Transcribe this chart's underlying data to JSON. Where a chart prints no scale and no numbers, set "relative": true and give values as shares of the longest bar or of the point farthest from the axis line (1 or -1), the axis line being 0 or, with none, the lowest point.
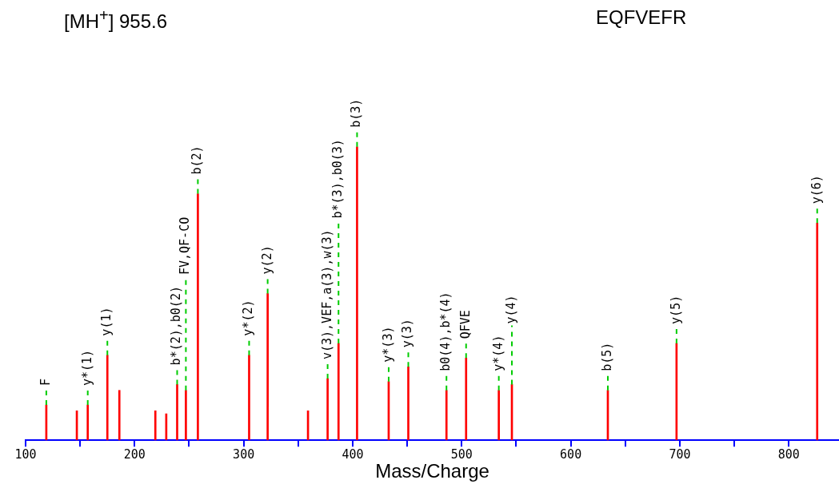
{
  "chart_data": {
    "type": "bar",
    "title": "[MH$^{+}$] 955.6",
    "subtitle": "EQFVEFR",
    "xlabel": "Mass/Charge",
    "relative": true,
    "color": "#ff0000",
    "x": [
      119,
      147,
      157,
      175,
      186,
      219,
      229,
      239,
      247,
      258,
      305,
      322,
      359,
      377,
      387,
      404,
      433,
      451,
      486,
      504,
      534,
      546,
      634,
      697,
      826
    ],
    "values": [
      0.12,
      0.1,
      0.12,
      0.29,
      0.17,
      0.1,
      0.09,
      0.19,
      0.17,
      0.84,
      0.29,
      0.5,
      0.1,
      0.21,
      0.33,
      1,
      0.2,
      0.25,
      0.17,
      0.28,
      0.17,
      0.19,
      0.17,
      0.33,
      0.74
    ],
    "xlim": [
      100,
      846
    ],
    "xticks": [
      100,
      {
        "value": 150,
        "label": null
      },
      200,
      {
        "value": 250,
        "label": null
      },
      300,
      {
        "value": 350,
        "label": null
      },
      400,
      {
        "value": 450,
        "label": null
      },
      500,
      {
        "value": 550,
        "label": null
      },
      600,
      {
        "value": 650,
        "label": null
      },
      700,
      {
        "value": 750,
        "label": null
      },
      800
    ],
    "annotations": [
      {
        "text": "F",
        "x": 119,
        "y": 0.12
      },
      {
        "text": "y*(1)",
        "x": 157,
        "y": 0.12
      },
      {
        "text": "y(1)",
        "x": 175,
        "y": 0.29
      },
      {
        "text": "b*(2),b0(2)",
        "x": 239,
        "y": 0.19
      },
      {
        "text": "FV,QF-CO",
        "x": 247,
        "y": 0.17
      },
      {
        "text": "b(2)",
        "x": 258,
        "y": 0.84
      },
      {
        "text": "y*(2)",
        "x": 305,
        "y": 0.29
      },
      {
        "text": "y(2)",
        "x": 322,
        "y": 0.5
      },
      {
        "text": "v(3),VEF,a(3),w(3)",
        "x": 377,
        "y": 0.21
      },
      {
        "text": "b*(3),b0(3)",
        "x": 387,
        "y": 0.33
      },
      {
        "text": "b(3)",
        "x": 404,
        "y": 1
      },
      {
        "text": "y*(3)",
        "x": 433,
        "y": 0.2
      },
      {
        "text": "y(3)",
        "x": 451,
        "y": 0.25
      },
      {
        "text": "b0(4),b*(4)",
        "x": 486,
        "y": 0.17
      },
      {
        "text": "QFVE",
        "x": 504,
        "y": 0.28
      },
      {
        "text": "y*(4)",
        "x": 534,
        "y": 0.17
      },
      {
        "text": "y(4)",
        "x": 546,
        "y": 0.19
      },
      {
        "text": "b(5)",
        "x": 634,
        "y": 0.17
      },
      {
        "text": "y(5)",
        "x": 697,
        "y": 0.33
      },
      {
        "text": "y(6)",
        "x": 826,
        "y": 0.74
      }
    ]
  }
}
